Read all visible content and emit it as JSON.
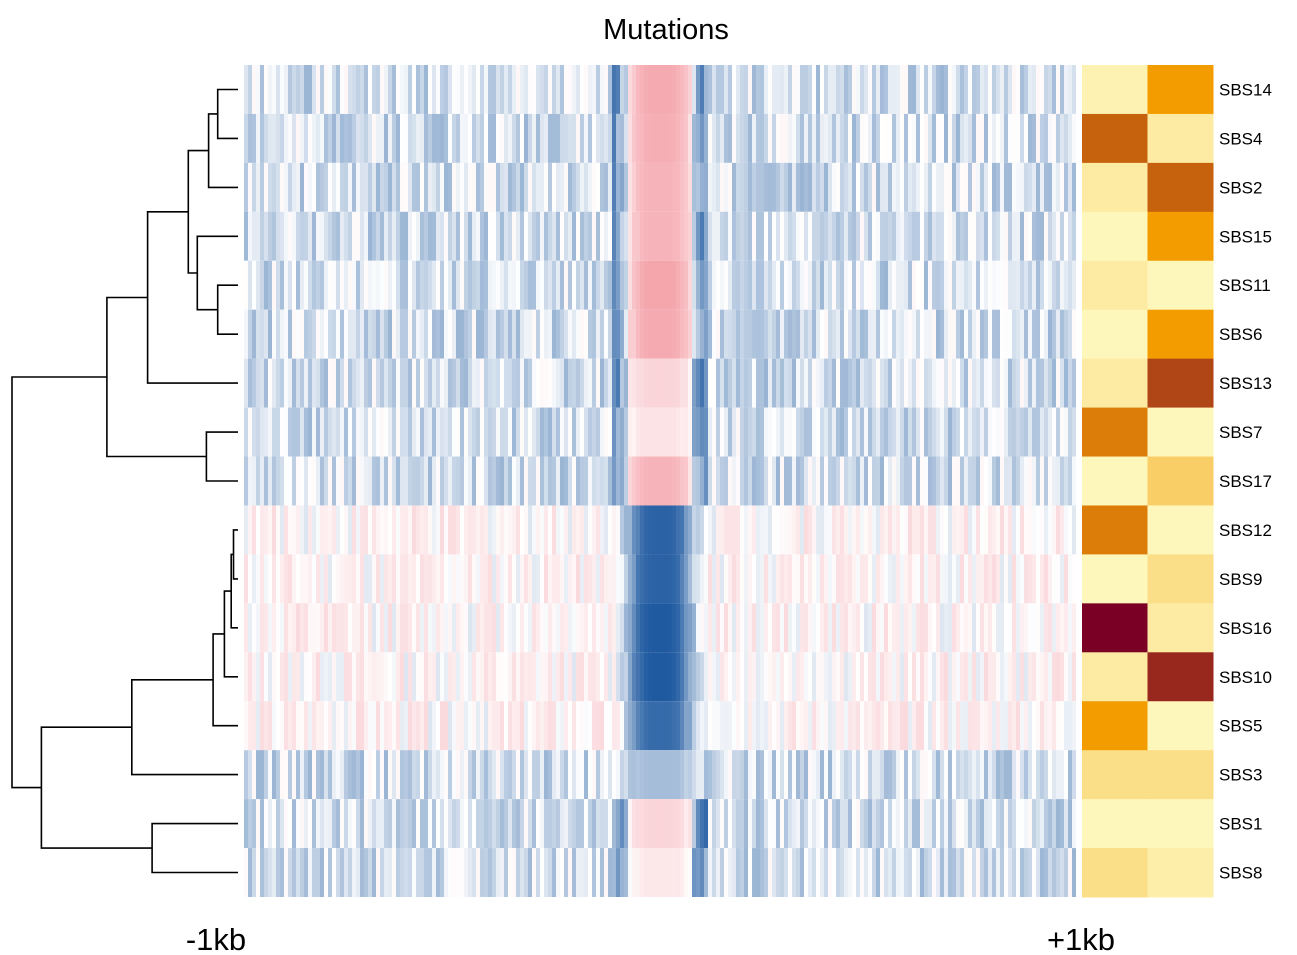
{
  "chart_data": {
    "type": "heatmap",
    "title": "Mutations",
    "x_tick_labels": [
      "-1kb",
      "+1kb"
    ],
    "rows": [
      "SBS14",
      "SBS4",
      "SBS2",
      "SBS15",
      "SBS11",
      "SBS6",
      "SBS13",
      "SBS7",
      "SBS17",
      "SBS12",
      "SBS9",
      "SBS16",
      "SBS10",
      "SBS5",
      "SBS3",
      "SBS1",
      "SBS8"
    ],
    "center_feature": [
      0.9,
      0.85,
      0.8,
      0.8,
      0.95,
      0.9,
      0.45,
      0.3,
      0.8,
      -0.95,
      -0.95,
      -1.0,
      -1.0,
      -0.9,
      -0.4,
      0.45,
      0.25
    ],
    "side_annotation": [
      [
        0.08,
        0.6
      ],
      [
        0.75,
        0.12
      ],
      [
        0.12,
        0.75
      ],
      [
        0.05,
        0.6
      ],
      [
        0.12,
        0.05
      ],
      [
        0.05,
        0.6
      ],
      [
        0.12,
        0.82
      ],
      [
        0.68,
        0.05
      ],
      [
        0.05,
        0.3
      ],
      [
        0.68,
        0.05
      ],
      [
        0.05,
        0.2
      ],
      [
        1.0,
        0.12
      ],
      [
        0.12,
        0.9
      ],
      [
        0.6,
        0.05
      ],
      [
        0.2,
        0.2
      ],
      [
        0.05,
        0.05
      ],
      [
        0.2,
        0.1
      ]
    ],
    "dendrogram_merges": [
      [
        -1,
        -2
      ],
      [
        -3,
        1
      ],
      [
        -5,
        -6
      ],
      [
        -4,
        3
      ],
      [
        2,
        4
      ],
      [
        5,
        -7
      ],
      [
        -8,
        -9
      ],
      [
        6,
        7
      ],
      [
        -10,
        -11
      ],
      [
        9,
        -12
      ],
      [
        10,
        -13
      ],
      [
        11,
        -14
      ],
      [
        12,
        -15
      ],
      [
        -16,
        -17
      ],
      [
        13,
        14
      ],
      [
        8,
        15
      ]
    ],
    "dendrogram_heights": [
      0.09,
      0.13,
      0.09,
      0.18,
      0.22,
      0.4,
      0.14,
      0.58,
      0.02,
      0.03,
      0.06,
      0.11,
      0.47,
      0.38,
      0.87,
      1.0
    ],
    "colors": {
      "negative": "#1f5aa0",
      "positive": "#f4a0a8",
      "neutral": "#ffffff",
      "annotation_low": "#ffffcc",
      "annotation_mid": "#f39c00",
      "annotation_high": "#7a0026"
    }
  }
}
